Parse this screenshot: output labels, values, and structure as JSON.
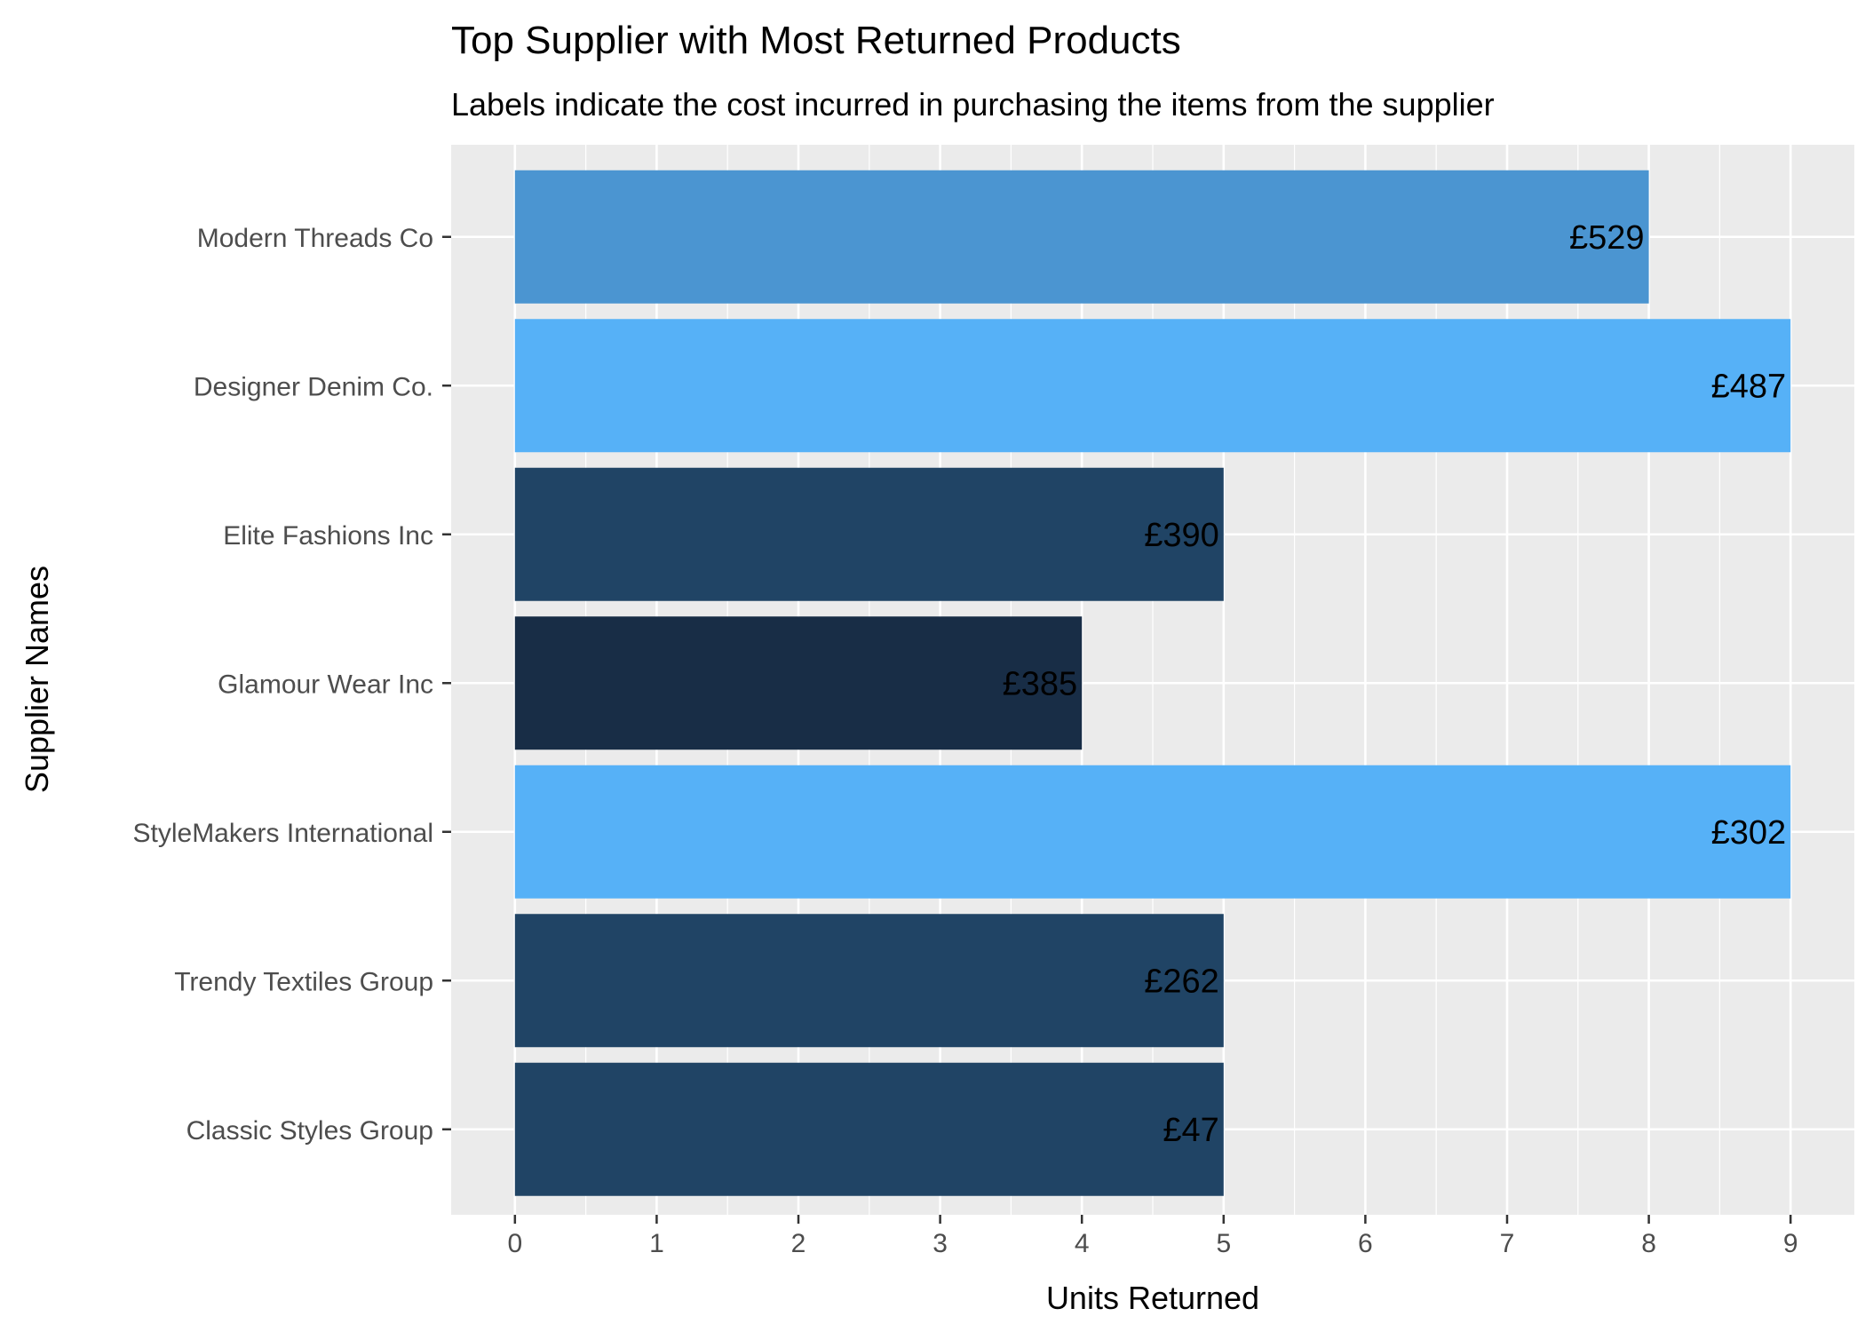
{
  "chart_data": {
    "type": "bar",
    "orientation": "horizontal",
    "title": "Top Supplier with Most Returned Products",
    "subtitle": "Labels indicate the cost incurred in purchasing the items from the supplier",
    "xlabel": "Units Returned",
    "ylabel": "Supplier Names",
    "xlim": [
      0,
      9
    ],
    "x_ticks": [
      "0",
      "1",
      "2",
      "3",
      "4",
      "5",
      "6",
      "7",
      "8",
      "9"
    ],
    "categories": [
      "Modern Threads Co",
      "Designer Denim Co.",
      "Elite Fashions Inc",
      "Glamour Wear Inc",
      "StyleMakers International",
      "Trendy Textiles Group",
      "Classic Styles Group"
    ],
    "values": [
      8,
      9,
      5,
      4,
      9,
      5,
      5
    ],
    "labels": [
      "£529",
      "£487",
      "£390",
      "£385",
      "£302",
      "£262",
      "£47"
    ],
    "bar_colors": [
      "#4b95d1",
      "#56b1f7",
      "#204465",
      "#182d46",
      "#56b1f7",
      "#204465",
      "#204465"
    ],
    "grid": true,
    "legend": "none",
    "panel_background": "#ebebeb",
    "grid_color": "#ffffff"
  }
}
